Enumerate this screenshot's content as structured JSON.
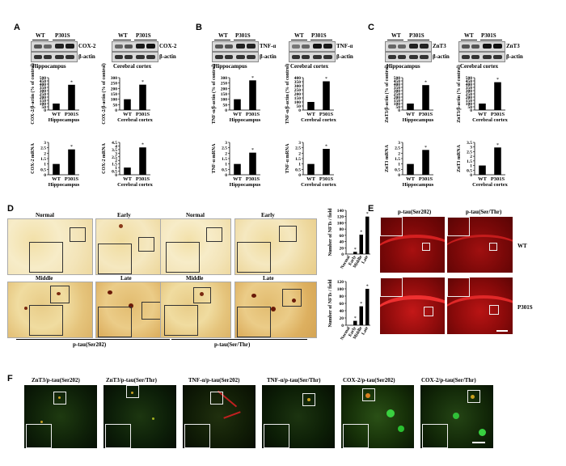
{
  "panels": {
    "A": {
      "letter": "A",
      "blot_left": {
        "wt": "WT",
        "p301s": "P301S",
        "target": "COX-2",
        "ref": "β-actin",
        "region": "Hippocampus"
      },
      "blot_right": {
        "wt": "WT",
        "p301s": "P301S",
        "target": "COX-2",
        "ref": "β-actin",
        "region": "Cerebral cortex"
      }
    },
    "B": {
      "letter": "B",
      "blot_left": {
        "wt": "WT",
        "p301s": "P301S",
        "target": "TNF-α",
        "ref": "β-actin",
        "region": "Hippocampus"
      },
      "blot_right": {
        "wt": "WT",
        "p301s": "P301S",
        "target": "TNF-α",
        "ref": "β-actin",
        "region": "Cerebral cortex"
      }
    },
    "C": {
      "letter": "C",
      "blot_left": {
        "wt": "WT",
        "p301s": "P301S",
        "target": "ZnT3",
        "ref": "β-actin",
        "region": "Hippocampus"
      },
      "blot_right": {
        "wt": "WT",
        "p301s": "P301S",
        "target": "ZnT3",
        "ref": "β-actin",
        "region": "Cerebral cortex"
      }
    },
    "D": {
      "letter": "D",
      "group1": {
        "label": "p-tau(Ser202)",
        "top": [
          "Normal",
          "Early"
        ],
        "bottom": [
          "Middle",
          "Late"
        ]
      },
      "group2": {
        "label": "p-tau(Ser/Thr)",
        "top": [
          "Normal",
          "Early"
        ],
        "bottom": [
          "Middle",
          "Late"
        ]
      }
    },
    "E": {
      "letter": "E",
      "col1": "p-tau(Ser202)",
      "col2": "p-tau(Ser/Thr)",
      "row1": "WT",
      "row2": "P301S"
    },
    "F": {
      "letter": "F",
      "labels": [
        "ZnT3/p-tau(Ser202)",
        "ZnT3/p-tau(Ser/Thr)",
        "TNF-α/p-tau(Ser202)",
        "TNF-α/p-tau(Ser/Thr)",
        "COX-2/p-tau(Ser202)",
        "COX-2/p-tau(Ser/Thr)"
      ]
    }
  },
  "chart_data": [
    {
      "id": "A1",
      "type": "bar",
      "categories": [
        "WT",
        "P301S"
      ],
      "values": [
        100,
        390
      ],
      "ylim": [
        0,
        500
      ],
      "ticks": [
        0,
        50,
        100,
        150,
        200,
        250,
        300,
        350,
        400,
        450,
        500
      ],
      "ylabel": "COX-2/β-actin (% of control)",
      "xlabel": "Hippocampus",
      "sig": "*"
    },
    {
      "id": "A2",
      "type": "bar",
      "categories": [
        "WT",
        "P301S"
      ],
      "values": [
        100,
        235
      ],
      "ylim": [
        0,
        300
      ],
      "ticks": [
        0,
        50,
        100,
        150,
        200,
        250,
        300
      ],
      "ylabel": "COX-2/β-actin (% of control)",
      "xlabel": "Cerebral cortex",
      "sig": "*"
    },
    {
      "id": "A3",
      "type": "bar",
      "categories": [
        "WT",
        "P301S"
      ],
      "values": [
        1,
        2.35
      ],
      "ylim": [
        0,
        3
      ],
      "ticks": [
        0,
        0.5,
        1,
        1.5,
        2,
        2.5,
        3
      ],
      "ylabel": "COX-2 mRNA",
      "xlabel": "Hippocampus",
      "sig": "*"
    },
    {
      "id": "A4",
      "type": "bar",
      "categories": [
        "WT",
        "P301S"
      ],
      "values": [
        1,
        3.8
      ],
      "ylim": [
        0,
        4.5
      ],
      "ticks": [
        0,
        0.5,
        1,
        1.5,
        2,
        2.5,
        3,
        3.5,
        4,
        4.5
      ],
      "ylabel": "COX-2 mRNA",
      "xlabel": "Cerebral cortex",
      "sig": "*"
    },
    {
      "id": "B1",
      "type": "bar",
      "categories": [
        "WT",
        "P301S"
      ],
      "values": [
        100,
        275
      ],
      "ylim": [
        0,
        300
      ],
      "ticks": [
        0,
        50,
        100,
        150,
        200,
        250,
        300
      ],
      "ylabel": "TNF-α/β-actin (% of control)",
      "xlabel": "Hippocampus",
      "sig": "*"
    },
    {
      "id": "B2",
      "type": "bar",
      "categories": [
        "WT",
        "P301S"
      ],
      "values": [
        100,
        355
      ],
      "ylim": [
        0,
        400
      ],
      "ticks": [
        0,
        50,
        100,
        150,
        200,
        250,
        300,
        350,
        400
      ],
      "ylabel": "TNF-α/β-actin (% of control)",
      "xlabel": "Cerebral cortex",
      "sig": "*"
    },
    {
      "id": "B3",
      "type": "bar",
      "categories": [
        "WT",
        "P301S"
      ],
      "values": [
        1,
        2.05
      ],
      "ylim": [
        0,
        3
      ],
      "ticks": [
        0,
        0.5,
        1,
        1.5,
        2,
        2.5,
        3
      ],
      "ylabel": "TNF-α mRNA",
      "xlabel": "Hippocampus",
      "sig": "*"
    },
    {
      "id": "B4",
      "type": "bar",
      "categories": [
        "WT",
        "P301S"
      ],
      "values": [
        1,
        2.4
      ],
      "ylim": [
        0,
        3
      ],
      "ticks": [
        0,
        0.5,
        1,
        1.5,
        2,
        2.5,
        3
      ],
      "ylabel": "TNF-α mRNA",
      "xlabel": "Cerebral cortex",
      "sig": "*"
    },
    {
      "id": "C1",
      "type": "bar",
      "categories": [
        "WT",
        "P301S"
      ],
      "values": [
        100,
        385
      ],
      "ylim": [
        0,
        500
      ],
      "ticks": [
        0,
        50,
        100,
        150,
        200,
        250,
        300,
        350,
        400,
        450,
        500
      ],
      "ylabel": "ZnT3/β-actin (% of control)",
      "xlabel": "Hippocampus",
      "sig": "*"
    },
    {
      "id": "C2",
      "type": "bar",
      "categories": [
        "WT",
        "P301S"
      ],
      "values": [
        100,
        430
      ],
      "ylim": [
        0,
        500
      ],
      "ticks": [
        0,
        50,
        100,
        150,
        200,
        250,
        300,
        350,
        400,
        450,
        500
      ],
      "ylabel": "ZnT3/β-actin (% of control)",
      "xlabel": "Cerebral cortex",
      "sig": "*"
    },
    {
      "id": "C3",
      "type": "bar",
      "categories": [
        "WT",
        "P301S"
      ],
      "values": [
        1,
        2.3
      ],
      "ylim": [
        0,
        3
      ],
      "ticks": [
        0,
        0.5,
        1,
        1.5,
        2,
        2.5,
        3
      ],
      "ylabel": "ZnT3 mRNA",
      "xlabel": "Hippocampus",
      "sig": "*"
    },
    {
      "id": "C4",
      "type": "bar",
      "categories": [
        "WT",
        "P301S"
      ],
      "values": [
        1,
        2.95
      ],
      "ylim": [
        0,
        3.5
      ],
      "ticks": [
        0,
        0.5,
        1,
        1.5,
        2,
        2.5,
        3,
        3.5
      ],
      "ylabel": "ZnT3 mRNA",
      "xlabel": "Cerebral cortex",
      "sig": "*"
    },
    {
      "id": "D1",
      "type": "bar",
      "categories": [
        "Normal",
        "Early",
        "Middle",
        "Late"
      ],
      "values": [
        0,
        7,
        62,
        120
      ],
      "ylim": [
        0,
        140
      ],
      "ticks": [
        0,
        20,
        40,
        60,
        80,
        100,
        120,
        140
      ],
      "ylabel": "Number of NFTs / field",
      "xlabel": "",
      "sig": "*"
    },
    {
      "id": "D2",
      "type": "bar",
      "categories": [
        "Normal",
        "Early",
        "Middle",
        "Late"
      ],
      "values": [
        0,
        12,
        52,
        100
      ],
      "ylim": [
        0,
        120
      ],
      "ticks": [
        0,
        20,
        40,
        60,
        80,
        100,
        120
      ],
      "ylabel": "Number of NFTs / field",
      "xlabel": "",
      "sig": "*"
    }
  ]
}
